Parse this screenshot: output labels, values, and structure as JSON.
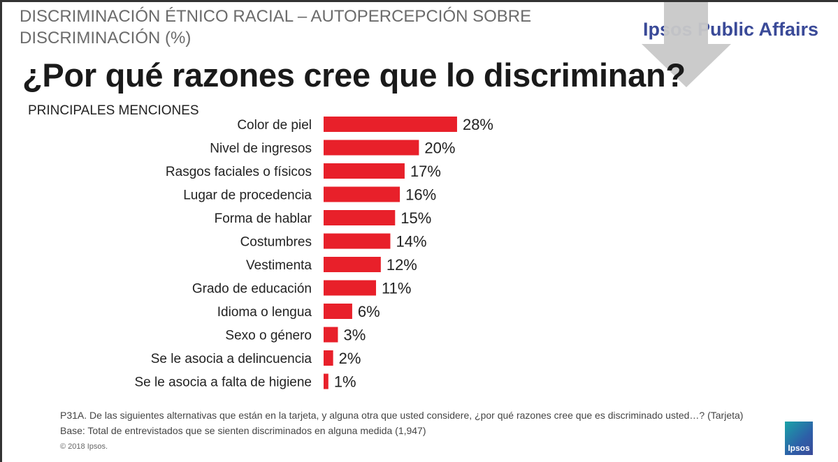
{
  "header": {
    "supertitle": "DISCRIMINACIÓN ÉTNICO RACIAL – AUTOPERCEPCIÓN SOBRE DISCRIMINACIÓN (%)",
    "brand": "Ipsos Public Affairs",
    "title": "¿Por qué razones cree que lo discriminan?",
    "subtitle": "PRINCIPALES MENCIONES"
  },
  "chart_data": {
    "type": "bar",
    "orientation": "horizontal",
    "categories": [
      "Color de piel",
      "Nivel de ingresos",
      "Rasgos faciales o físicos",
      "Lugar de procedencia",
      "Forma de hablar",
      "Costumbres",
      "Vestimenta",
      "Grado de educación",
      "Idioma o lengua",
      "Sexo o género",
      "Se le asocia a delincuencia",
      "Se le asocia a falta de higiene"
    ],
    "values": [
      28,
      20,
      17,
      16,
      15,
      14,
      12,
      11,
      6,
      3,
      2,
      1
    ],
    "data_labels": [
      "28%",
      "20%",
      "17%",
      "16%",
      "15%",
      "14%",
      "12%",
      "11%",
      "6%",
      "3%",
      "2%",
      "1%"
    ],
    "bar_color": "#e8202a",
    "grid": false
  },
  "footer": {
    "question": "P31A. De las siguientes alternativas que están en la tarjeta, y alguna otra que usted considere, ¿por qué razones cree que es discriminado usted…? (Tarjeta)",
    "base": "Base: Total de entrevistados que se sienten discriminados en alguna medida (1,947)",
    "copyright": "© 2018 Ipsos.",
    "logo": "Ipsos"
  }
}
